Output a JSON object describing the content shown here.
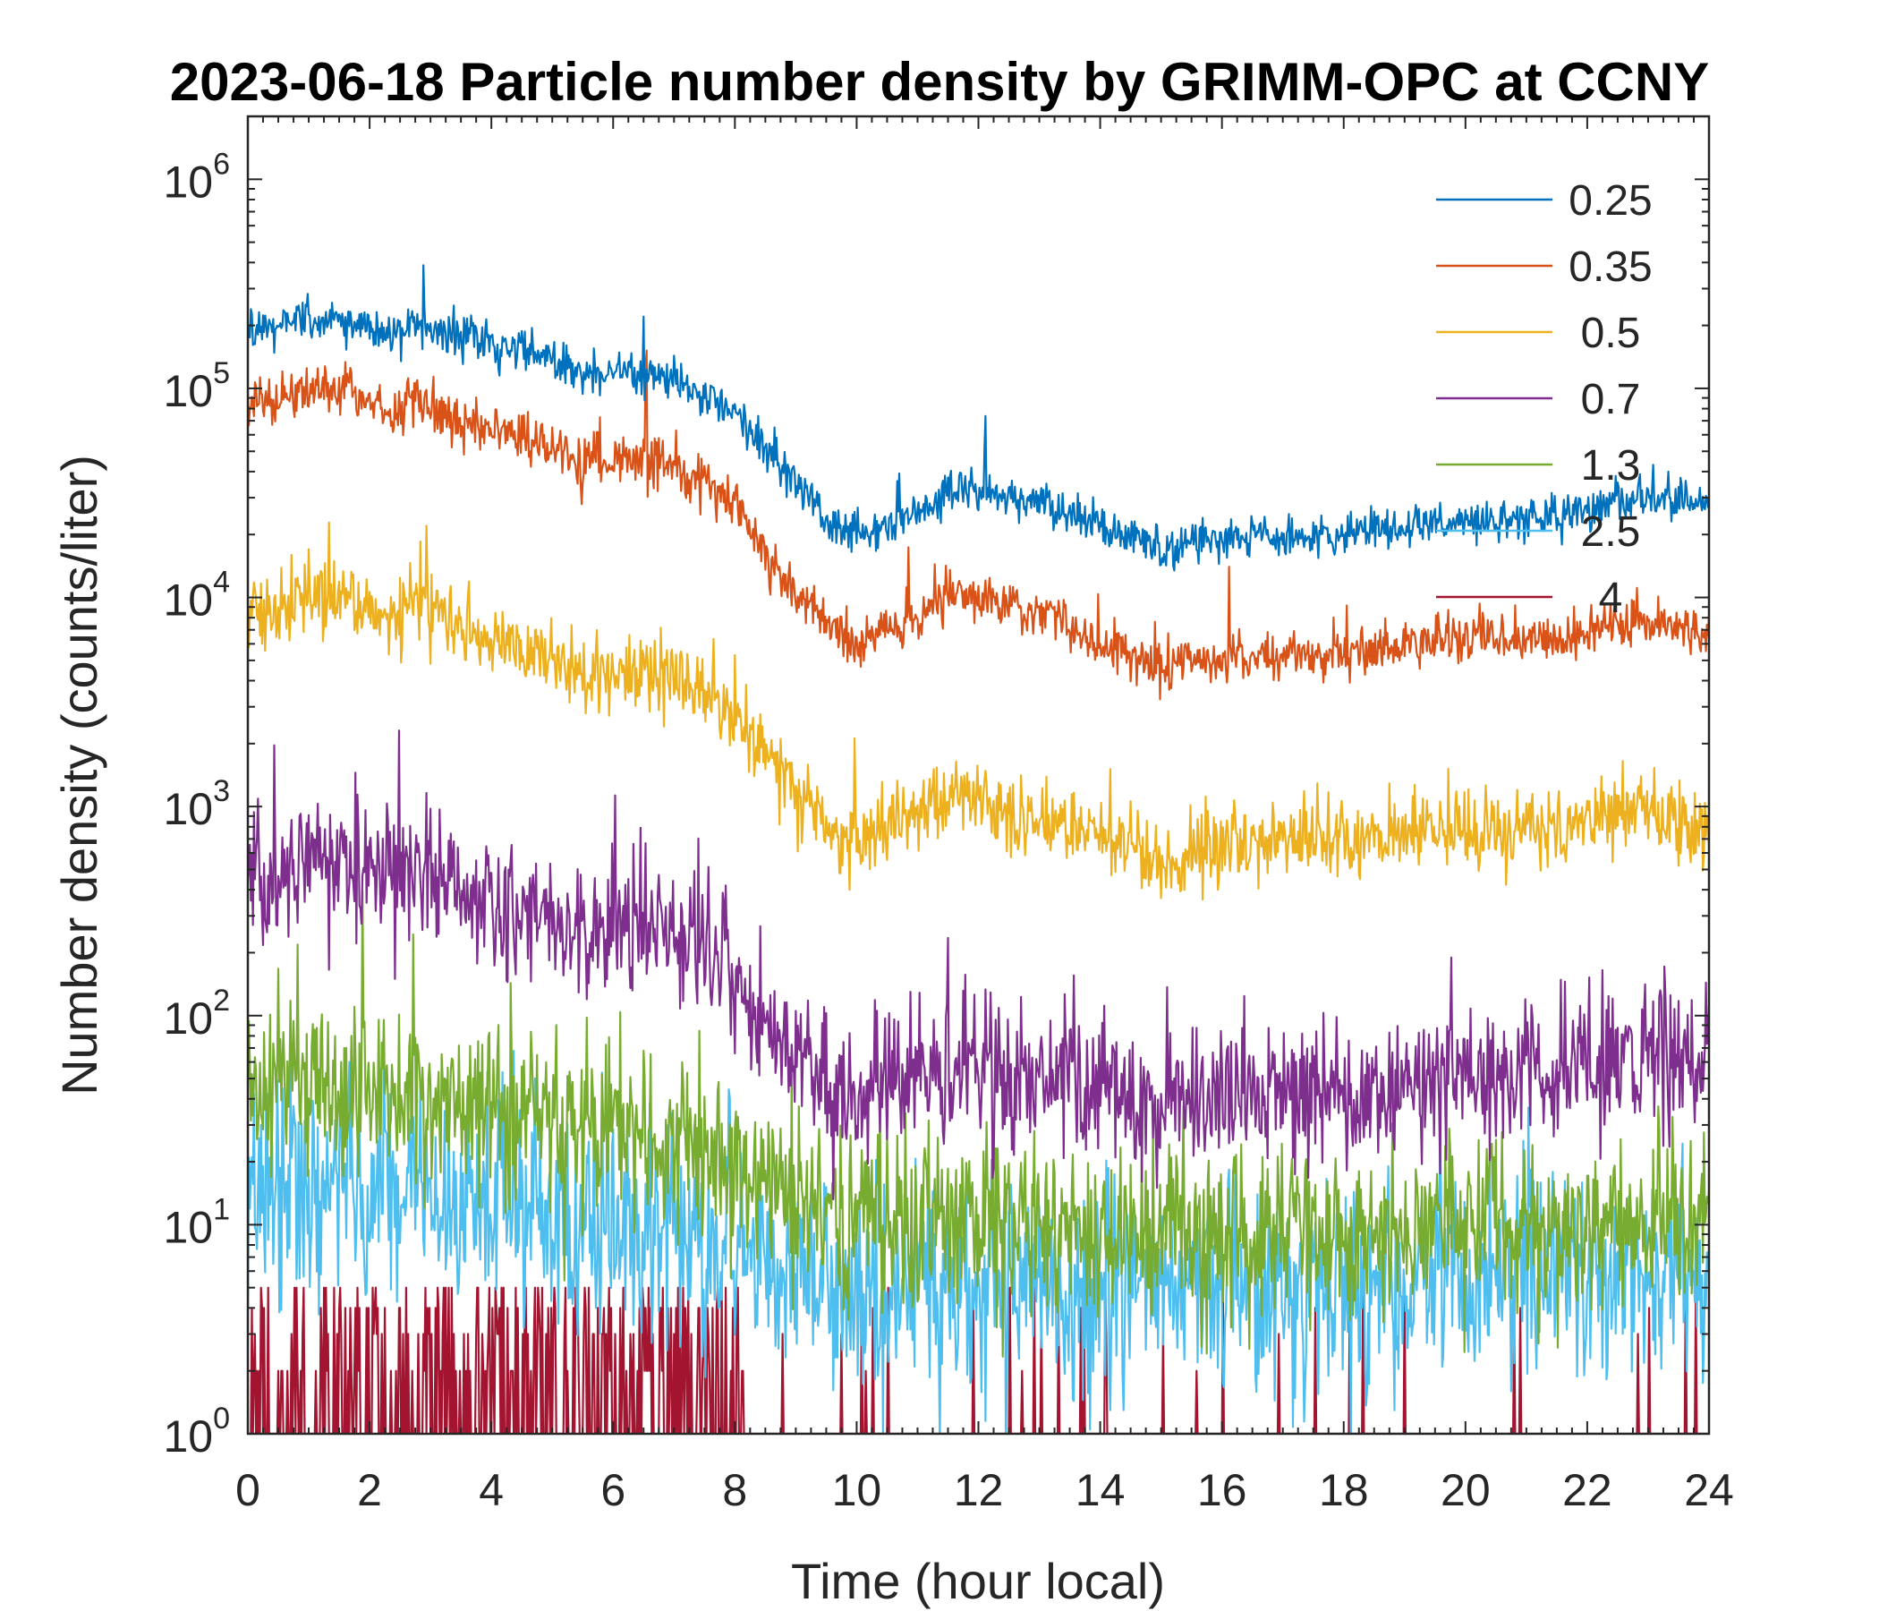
{
  "chart_data": {
    "type": "line",
    "title": "2023-06-18 Particle number density by GRIMM-OPC at CCNY",
    "xlabel": "Time (hour local)",
    "ylabel": "Number density (counts/liter)",
    "xlim": [
      0,
      24
    ],
    "ylim": [
      1,
      2000000
    ],
    "yscale": "log",
    "x_ticks": [
      "0",
      "2",
      "4",
      "6",
      "8",
      "10",
      "12",
      "14",
      "16",
      "18",
      "20",
      "22",
      "24"
    ],
    "y_ticks": [
      {
        "base": "10",
        "exp": "0"
      },
      {
        "base": "10",
        "exp": "1"
      },
      {
        "base": "10",
        "exp": "2"
      },
      {
        "base": "10",
        "exp": "3"
      },
      {
        "base": "10",
        "exp": "4"
      },
      {
        "base": "10",
        "exp": "5"
      },
      {
        "base": "10",
        "exp": "6"
      }
    ],
    "legend_position": "top-right",
    "series": [
      {
        "name": "0.25",
        "color": "#0072BD",
        "noise": 0.05,
        "spike": 0.003,
        "x": [
          0,
          0.5,
          1,
          1.5,
          2,
          2.4,
          2.6,
          3,
          3.5,
          4,
          4.5,
          5,
          5.5,
          6,
          6.5,
          7,
          7.5,
          8,
          8.5,
          9,
          9.5,
          10,
          10.5,
          11,
          11.5,
          12,
          13,
          13.5,
          14,
          14.5,
          15,
          15.5,
          16,
          17,
          18,
          19,
          20,
          21,
          22,
          23,
          24
        ],
        "y": [
          190000,
          195000,
          210000,
          220000,
          200000,
          175000,
          200000,
          195000,
          180000,
          165000,
          150000,
          135000,
          115000,
          120000,
          115000,
          110000,
          95000,
          80000,
          50000,
          37000,
          24000,
          20000,
          22000,
          26000,
          32000,
          32000,
          28000,
          25000,
          22000,
          20000,
          17000,
          18500,
          19000,
          19500,
          20000,
          22000,
          23000,
          24000,
          26000,
          31000,
          27000
        ]
      },
      {
        "name": "0.35",
        "color": "#D95319",
        "noise": 0.06,
        "spike": 0.003,
        "x": [
          0,
          0.5,
          1,
          1.5,
          2,
          2.4,
          2.6,
          3,
          3.5,
          4,
          4.5,
          5,
          5.5,
          6,
          6.5,
          7,
          7.5,
          8,
          8.5,
          9,
          9.5,
          10,
          10.5,
          11,
          11.5,
          12,
          13,
          13.5,
          14,
          14.5,
          15,
          15.5,
          16,
          17,
          18,
          19,
          20,
          21,
          22,
          23,
          24
        ],
        "y": [
          85000,
          88000,
          97000,
          102000,
          90000,
          75000,
          92000,
          85000,
          72000,
          63000,
          57000,
          52000,
          45000,
          46000,
          44000,
          42000,
          35000,
          28000,
          15000,
          10500,
          7500,
          6200,
          6800,
          8000,
          10500,
          10000,
          8500,
          7500,
          6000,
          5500,
          4500,
          4800,
          5000,
          5200,
          5500,
          6000,
          6300,
          6400,
          6800,
          8000,
          6500
        ]
      },
      {
        "name": "0.5",
        "color": "#EDB120",
        "noise": 0.09,
        "spike": 0.006,
        "x": [
          0,
          0.5,
          1,
          1.5,
          2,
          2.4,
          2.6,
          3,
          3.5,
          4,
          4.5,
          5,
          5.5,
          6,
          6.5,
          7,
          7.5,
          8,
          8.5,
          9,
          9.5,
          10,
          10.5,
          11,
          11.5,
          12,
          13,
          13.5,
          14,
          14.5,
          15,
          15.5,
          16,
          17,
          18,
          19,
          20,
          21,
          22,
          23,
          24
        ],
        "y": [
          8500,
          9000,
          10000,
          10300,
          9000,
          7500,
          9500,
          8500,
          7000,
          6000,
          5500,
          5000,
          4500,
          4400,
          4200,
          4000,
          3500,
          2700,
          1800,
          1250,
          800,
          700,
          800,
          950,
          1100,
          1050,
          900,
          850,
          700,
          650,
          550,
          600,
          650,
          700,
          700,
          750,
          800,
          800,
          850,
          1000,
          800
        ]
      },
      {
        "name": "0.7",
        "color": "#7E2F8E",
        "noise": 0.17,
        "spike": 0.01,
        "x": [
          0,
          0.5,
          1,
          1.5,
          2,
          2.5,
          3,
          3.5,
          4,
          4.5,
          5,
          5.5,
          6,
          6.5,
          7,
          7.5,
          8,
          8.5,
          9,
          9.5,
          10,
          11,
          12,
          13,
          14,
          15,
          16,
          17,
          18,
          19,
          20,
          21,
          22,
          23,
          24
        ],
        "y": [
          480,
          500,
          540,
          560,
          470,
          450,
          470,
          400,
          350,
          320,
          290,
          270,
          250,
          260,
          250,
          210,
          140,
          90,
          70,
          50,
          45,
          50,
          55,
          50,
          45,
          35,
          40,
          40,
          42,
          45,
          50,
          50,
          55,
          65,
          60
        ]
      },
      {
        "name": "1.3",
        "color": "#77AC30",
        "noise": 0.21,
        "spike": 0.01,
        "x": [
          0,
          1,
          2,
          3,
          4,
          5,
          6,
          7,
          8,
          9,
          10,
          12,
          14,
          16,
          18,
          20,
          22,
          24
        ],
        "y": [
          45,
          48,
          45,
          42,
          38,
          35,
          30,
          26,
          20,
          13,
          11,
          10,
          9,
          9,
          9,
          10,
          10,
          11
        ]
      },
      {
        "name": "2.5",
        "color": "#4DBEEE",
        "noise": 0.25,
        "spike": 0.01,
        "x": [
          0,
          1,
          2,
          3,
          4,
          5,
          6,
          7,
          8,
          9,
          10,
          12,
          14,
          16,
          18,
          20,
          22,
          24
        ],
        "y": [
          14,
          14,
          14,
          13,
          12,
          11,
          10,
          9,
          7,
          5.5,
          5,
          5,
          5,
          5,
          5,
          5.5,
          6,
          6
        ]
      },
      {
        "name": "4",
        "color": "#A2142F",
        "noise": 0.3,
        "spike": 0.0,
        "x": [
          0,
          2,
          4,
          6,
          7,
          8,
          8.2,
          24
        ],
        "y": [
          2,
          2,
          2,
          1.7,
          1.4,
          1.2,
          1,
          1
        ]
      }
    ]
  }
}
